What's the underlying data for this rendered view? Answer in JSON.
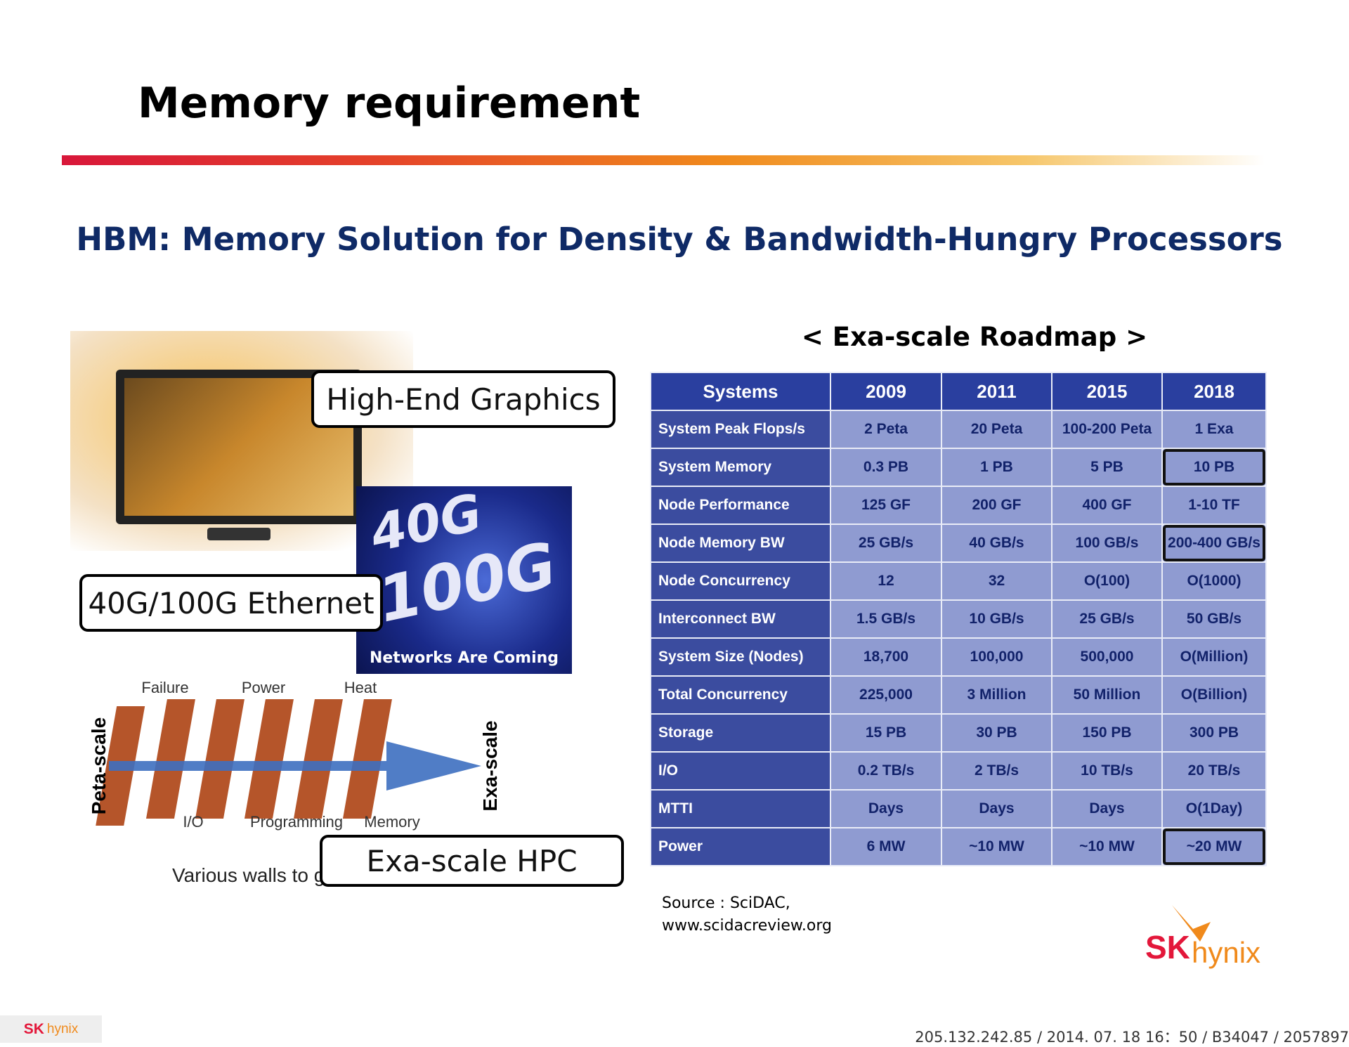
{
  "header": {
    "title": "Memory requirement"
  },
  "subtitle": "HBM: Memory Solution for Density & Bandwidth-Hungry Processors",
  "roadmap_title": "< Exa-scale Roadmap >",
  "table": {
    "header": [
      "Systems",
      "2009",
      "2011",
      "2015",
      "2018"
    ],
    "rows": [
      [
        "System Peak Flops/s",
        "2 Peta",
        "20 Peta",
        "100-200 Peta",
        "1 Exa"
      ],
      [
        "System Memory",
        "0.3 PB",
        "1 PB",
        "5 PB",
        "10 PB"
      ],
      [
        "Node Performance",
        "125 GF",
        "200 GF",
        "400 GF",
        "1-10 TF"
      ],
      [
        "Node Memory BW",
        "25 GB/s",
        "40 GB/s",
        "100 GB/s",
        "200-400 GB/s"
      ],
      [
        "Node Concurrency",
        "12",
        "32",
        "O(100)",
        "O(1000)"
      ],
      [
        "Interconnect BW",
        "1.5 GB/s",
        "10 GB/s",
        "25 GB/s",
        "50 GB/s"
      ],
      [
        "System Size (Nodes)",
        "18,700",
        "100,000",
        "500,000",
        "O(Million)"
      ],
      [
        "Total Concurrency",
        "225,000",
        "3 Million",
        "50 Million",
        "O(Billion)"
      ],
      [
        "Storage",
        "15 PB",
        "30 PB",
        "150 PB",
        "300 PB"
      ],
      [
        "I/O",
        "0.2 TB/s",
        "2 TB/s",
        "10 TB/s",
        "20 TB/s"
      ],
      [
        "MTTI",
        "Days",
        "Days",
        "Days",
        "O(1Day)"
      ],
      [
        "Power",
        "6 MW",
        "~10 MW",
        "~10 MW",
        "~20 MW"
      ]
    ]
  },
  "callouts": [
    "High-End Graphics",
    "40G/100G Ethernet",
    "Exa-scale HPC"
  ],
  "ethernet_image": {
    "big1": "40G",
    "big2": "100G",
    "caption": "Networks Are Coming"
  },
  "walls_diagram": {
    "top_labels": [
      "Failure",
      "Power",
      "Heat"
    ],
    "bottom_labels": [
      "I/O",
      "Programming",
      "Memory"
    ],
    "left": "Peta-scale",
    "right": "Exa-scale",
    "caption": "Various walls to g"
  },
  "source": [
    "Source : SciDAC,",
    "www.scidacreview.org"
  ],
  "logo": {
    "sk": "SK",
    "hynix": "hynix"
  },
  "footer": "205.132.242.85 / 2014. 07. 18  16：50 / B34047 / 2057897"
}
